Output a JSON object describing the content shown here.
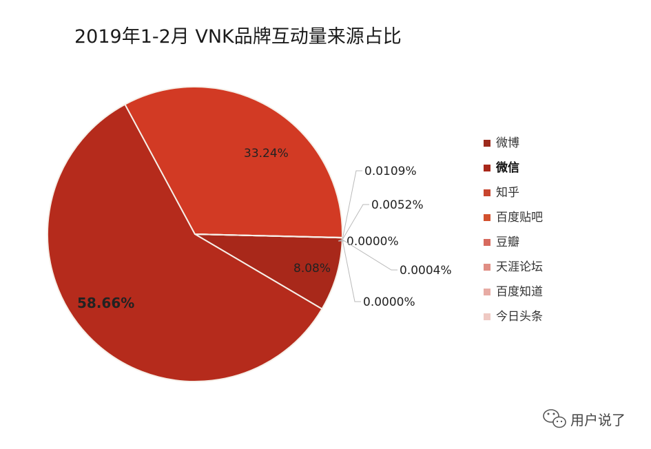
{
  "chart_data": {
    "type": "pie",
    "title": "2019年1-2月 VNK品牌互动量来源占比",
    "slices": [
      {
        "name": "微博",
        "value": 58.66,
        "label": "58.66%",
        "color": "#b52b1c"
      },
      {
        "name": "微信",
        "value": 33.24,
        "label": "33.24%",
        "color": "#d23a24"
      },
      {
        "name": "知乎",
        "value": 0.0109,
        "label": "0.0109%",
        "color": "#c8452e"
      },
      {
        "name": "百度贴吧",
        "value": 0.0052,
        "label": "0.0052%",
        "color": "#d2512e"
      },
      {
        "name": "豆瓣",
        "value": 0.0,
        "label": "0.0000%",
        "color": "#d76a5e"
      },
      {
        "name": "天涯论坛",
        "value": 0.0004,
        "label": "0.0004%",
        "color": "#e08e84"
      },
      {
        "name": "百度知道",
        "value": 0.0,
        "label": "0.0000%",
        "color": "#e7aba4"
      },
      {
        "name": "今日头条",
        "value": 8.08,
        "label": "8.08%",
        "color": "#a8281a"
      }
    ],
    "legend": {
      "placement": "right",
      "items": [
        {
          "name": "微博",
          "color": "#9c2a1c",
          "bold": false
        },
        {
          "name": "微信",
          "color": "#a8281a",
          "bold": true
        },
        {
          "name": "知乎",
          "color": "#c8452e",
          "bold": false
        },
        {
          "name": "百度贴吧",
          "color": "#d2512e",
          "bold": false
        },
        {
          "name": "豆瓣",
          "color": "#d76a5e",
          "bold": false
        },
        {
          "name": "天涯论坛",
          "color": "#e08e84",
          "bold": false
        },
        {
          "name": "百度知道",
          "color": "#e7aba4",
          "bold": false
        },
        {
          "name": "今日头条",
          "color": "#efc9c3",
          "bold": false
        }
      ]
    }
  },
  "watermark": {
    "text": "用户说了",
    "icon": "wechat-icon"
  }
}
